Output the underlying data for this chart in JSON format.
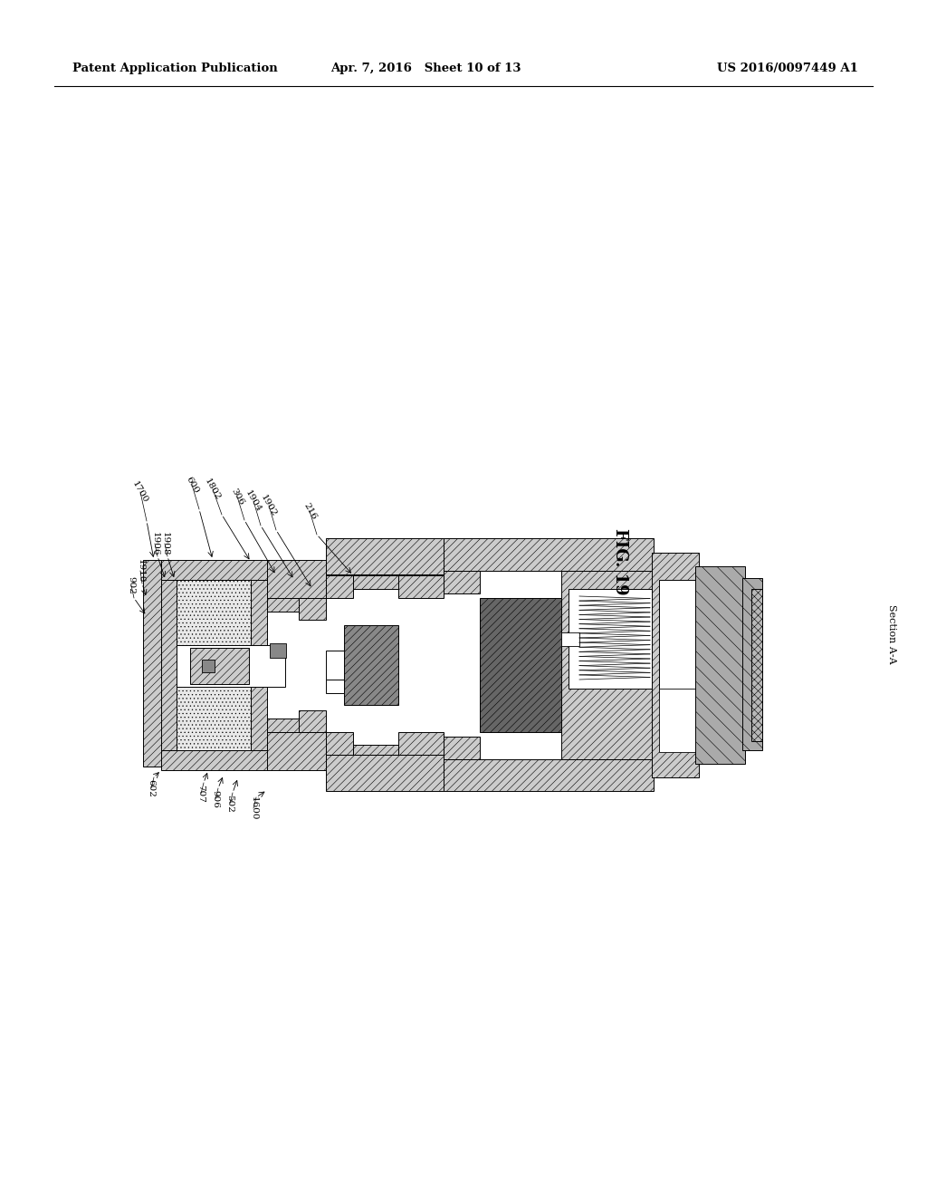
{
  "background_color": "#ffffff",
  "page_width": 10.24,
  "page_height": 13.2,
  "header_text_left": "Patent Application Publication",
  "header_text_mid": "Apr. 7, 2016   Sheet 10 of 13",
  "header_text_right": "US 2016/0097449 A1",
  "fig_label": "FIG. 19",
  "section_label": "Section A-A",
  "grey_light": "#cccccc",
  "grey_mid": "#aaaaaa",
  "grey_dark": "#888888",
  "grey_darker": "#666666",
  "black": "#000000",
  "white": "#ffffff"
}
